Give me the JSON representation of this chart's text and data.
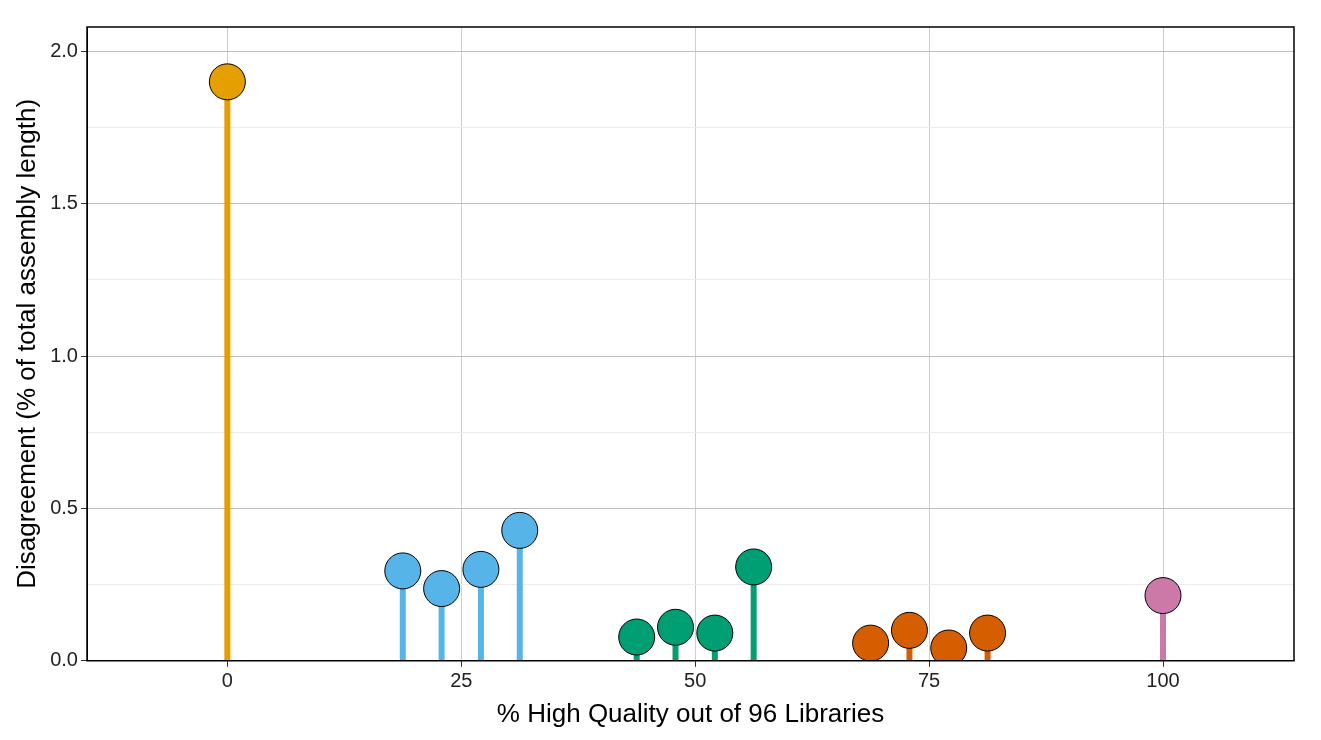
{
  "chart_data": {
    "type": "lollipop",
    "xlabel": "% High Quality out of 96 Libraries",
    "ylabel": "Disagreement (% of total assembly length)",
    "xlim": [
      -15,
      114
    ],
    "xticks": [
      0,
      25,
      50,
      75,
      100
    ],
    "ylim": [
      0,
      2.08
    ],
    "yticks": [
      {
        "value": 0,
        "label": "0.0"
      },
      {
        "value": 0.25,
        "label": null
      },
      {
        "value": 0.5,
        "label": "0.5"
      },
      {
        "value": 0.75,
        "label": null
      },
      {
        "value": 1,
        "label": "1.0"
      },
      {
        "value": 1.25,
        "label": null
      },
      {
        "value": 1.5,
        "label": "1.5"
      },
      {
        "value": 1.75,
        "label": null
      },
      {
        "value": 2,
        "label": "2.0"
      }
    ],
    "grid": true,
    "legend": false,
    "marker": "circle",
    "series": [
      {
        "color": "#e69f00",
        "x": [
          0
        ],
        "values": [
          1.9
        ]
      },
      {
        "color": "#56b4e9",
        "x": [
          18.75,
          22.9,
          27.1,
          31.25
        ],
        "values": [
          0.295,
          0.237,
          0.3,
          0.428
        ]
      },
      {
        "color": "#009e73",
        "x": [
          43.75,
          47.9,
          52.1,
          56.25
        ],
        "values": [
          0.078,
          0.11,
          0.091,
          0.308
        ]
      },
      {
        "color": "#d55e00",
        "x": [
          68.75,
          72.9,
          77.1,
          81.25
        ],
        "values": [
          0.058,
          0.1,
          0.042,
          0.091
        ]
      },
      {
        "color": "#cc79a7",
        "x": [
          100
        ],
        "values": [
          0.214
        ]
      }
    ]
  }
}
